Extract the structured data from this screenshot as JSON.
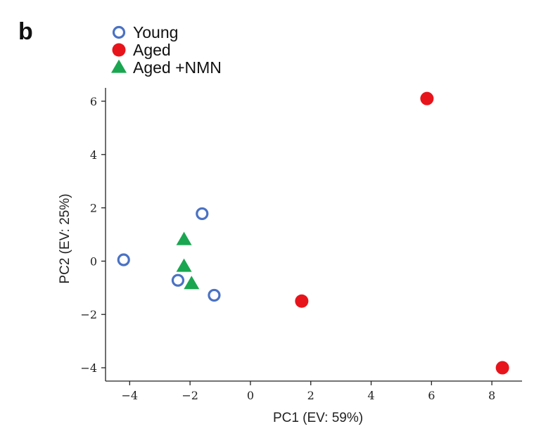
{
  "panel_label": "b",
  "chart_data": {
    "type": "scatter",
    "xlabel": "PC1 (EV: 59%)",
    "ylabel": "PC2 (EV: 25%)",
    "xlim": [
      -4.8,
      9.0
    ],
    "ylim": [
      -4.5,
      6.5
    ],
    "xticks": [
      -4,
      -2,
      0,
      2,
      4,
      6,
      8
    ],
    "yticks": [
      -4,
      -2,
      0,
      2,
      4,
      6
    ],
    "xtick_labels": [
      "−4",
      "−2",
      "0",
      "2",
      "4",
      "6",
      "8"
    ],
    "ytick_labels": [
      "−4",
      "−2",
      "0",
      "2",
      "4",
      "6"
    ],
    "grid": false,
    "legend_position": "top-left",
    "series": [
      {
        "name": "Young",
        "marker": "open-circle",
        "color": "#4a72c4",
        "points": [
          [
            -4.2,
            0.05
          ],
          [
            -1.6,
            1.78
          ],
          [
            -2.4,
            -0.72
          ],
          [
            -1.2,
            -1.28
          ]
        ]
      },
      {
        "name": "Aged",
        "marker": "filled-circle",
        "color": "#e8141b",
        "points": [
          [
            5.85,
            6.1
          ],
          [
            1.7,
            -1.5
          ],
          [
            8.35,
            -4.0
          ]
        ]
      },
      {
        "name": "Aged +NMN",
        "marker": "triangle",
        "color": "#1aa650",
        "points": [
          [
            -2.2,
            0.8
          ],
          [
            -2.2,
            -0.2
          ],
          [
            -1.95,
            -0.85
          ]
        ]
      }
    ]
  }
}
